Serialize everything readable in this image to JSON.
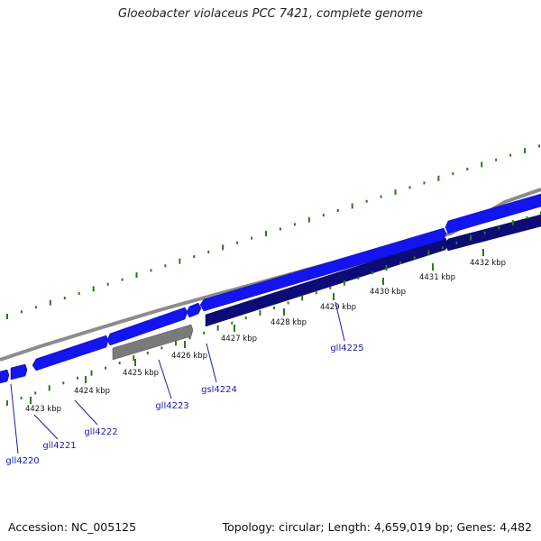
{
  "title": "Gloeobacter violaceus PCC 7421, complete genome",
  "footer": {
    "accession": "Accession: NC_005125",
    "summary": "Topology: circular; Length: 4,659,019 bp; Genes: 4,482"
  },
  "colors": {
    "forward_gene": "#1414f0",
    "reverse_gene": "#0c0c78",
    "rna_gene": "#7a7a7a",
    "backbone": "#8c8c8c",
    "gc_tick": "#2a7a1a",
    "label": "#1a1aa8"
  },
  "scale_labels": [
    "4423 kbp",
    "4424 kbp",
    "4425 kbp",
    "4426 kbp",
    "4427 kbp",
    "4428 kbp",
    "4429 kbp",
    "4430 kbp",
    "4431 kbp",
    "4432 kbp"
  ],
  "gene_labels": [
    "gll4220",
    "gll4221",
    "gll4222",
    "gll4223",
    "gsl4224",
    "gll4225"
  ]
}
